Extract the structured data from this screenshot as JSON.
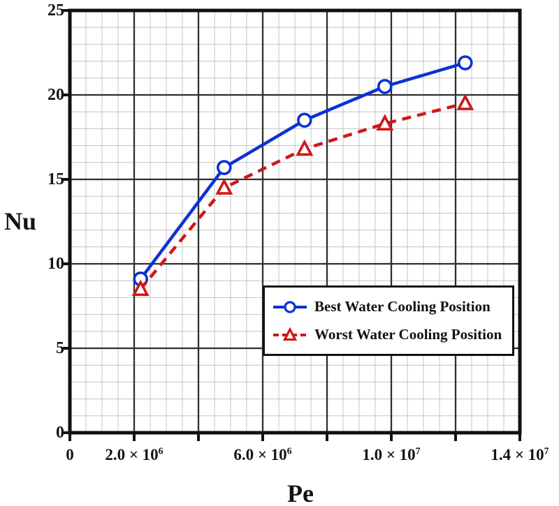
{
  "chart_data": {
    "type": "line",
    "title": "",
    "xlabel": "Pe",
    "ylabel": "Nu",
    "xlim": [
      0,
      14000000
    ],
    "ylim": [
      0,
      25
    ],
    "x_major_step": 2000000,
    "x_minor_step": 500000,
    "y_major_step": 5,
    "y_minor_step": 1,
    "grid": "major+minor",
    "legend_position": "center-right",
    "colors": {
      "border": "#111111",
      "major_grid": "#2f2f2f",
      "minor_grid": "#c4c4c4",
      "tick": "#111111",
      "text": "#141414"
    },
    "x_ticks": [
      {
        "value": 0,
        "base": "0",
        "exp": ""
      },
      {
        "value": 2000000,
        "base": "2.0 × 10",
        "exp": "6"
      },
      {
        "value": 6000000,
        "base": "6.0 × 10",
        "exp": "6"
      },
      {
        "value": 10000000,
        "base": "1.0 × 10",
        "exp": "7"
      },
      {
        "value": 14000000,
        "base": "1.4 × 10",
        "exp": "7"
      }
    ],
    "y_ticks": [
      {
        "value": 0,
        "label": "0"
      },
      {
        "value": 5,
        "label": "5"
      },
      {
        "value": 10,
        "label": "10"
      },
      {
        "value": 15,
        "label": "15"
      },
      {
        "value": 20,
        "label": "20"
      },
      {
        "value": 25,
        "label": "25"
      }
    ],
    "series": [
      {
        "name": "Best Water Cooling Position",
        "color": "#0b32d4",
        "line_style": "solid",
        "marker": "circle",
        "x": [
          2200000,
          4800000,
          7300000,
          9800000,
          12300000
        ],
        "y": [
          9.1,
          15.7,
          18.5,
          20.5,
          21.9
        ]
      },
      {
        "name": "Worst Water Cooling Position",
        "color": "#cf1717",
        "line_style": "dashed",
        "marker": "triangle",
        "x": [
          2200000,
          4800000,
          7300000,
          9800000,
          12300000
        ],
        "y": [
          8.5,
          14.5,
          16.8,
          18.3,
          19.5
        ]
      }
    ]
  }
}
